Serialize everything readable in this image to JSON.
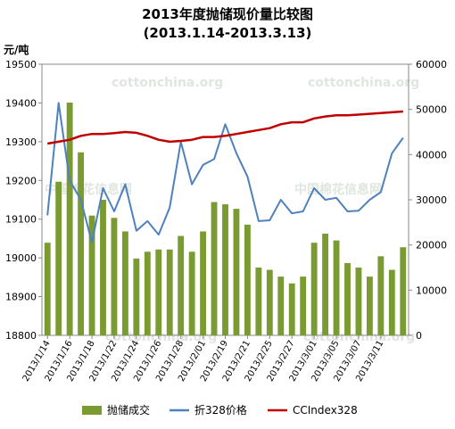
{
  "chart_data": {
    "type": "bar+line",
    "title": "2013年度抛储现价量比较图",
    "subtitle": "(2013.1.14-2013.3.13)",
    "ylabel_left": "元/吨",
    "ylim_left": [
      18800,
      19500
    ],
    "yticks_left": [
      "19500",
      "19400",
      "19300",
      "19200",
      "19100",
      "19000",
      "18900",
      "18800"
    ],
    "ylim_right": [
      0,
      60000
    ],
    "yticks_right": [
      "60000",
      "50000",
      "40000",
      "30000",
      "20000",
      "10000",
      "0"
    ],
    "x_tick_labels": [
      "2013/1/14",
      "2013/1/16",
      "2013/1/18",
      "2013/1/22",
      "2013/1/24",
      "2013/1/26",
      "2013/1/28",
      "2013/2/01",
      "2013/2/19",
      "2013/2/21",
      "2013/2/25",
      "2013/2/27",
      "2013/3/01",
      "2013/3/05",
      "2013/3/07",
      "2013/3/11"
    ],
    "series": [
      {
        "name": "抛储成交",
        "kind": "bar",
        "axis": "right",
        "color": "#7a9a32",
        "values": [
          20500,
          34000,
          51500,
          40500,
          26500,
          30000,
          26000,
          23000,
          17000,
          18500,
          19000,
          19000,
          22000,
          18500,
          23000,
          29500,
          29000,
          28000,
          24500,
          15000,
          14500,
          13000,
          11500,
          13000,
          20500,
          22500,
          21000,
          16000,
          15000,
          13000,
          17500,
          14500,
          19500
        ]
      },
      {
        "name": "折328价格",
        "kind": "line",
        "axis": "left",
        "color": "#4f81bd",
        "values": [
          19110,
          19400,
          19200,
          19150,
          19040,
          19180,
          19120,
          19190,
          19070,
          19095,
          19060,
          19130,
          19300,
          19190,
          19240,
          19255,
          19345,
          19270,
          19210,
          19095,
          19097,
          19150,
          19115,
          19120,
          19180,
          19150,
          19155,
          19120,
          19122,
          19150,
          19170,
          19270,
          19310
        ]
      },
      {
        "name": "CCIndex328",
        "kind": "line",
        "axis": "left",
        "color": "#c00000",
        "values": [
          19295,
          19300,
          19305,
          19315,
          19320,
          19320,
          19322,
          19325,
          19323,
          19315,
          19305,
          19300,
          19302,
          19305,
          19312,
          19312,
          19315,
          19320,
          19325,
          19330,
          19335,
          19345,
          19350,
          19350,
          19360,
          19365,
          19368,
          19368,
          19370,
          19372,
          19374,
          19376,
          19378
        ]
      }
    ],
    "grid": false,
    "legend_position": "bottom"
  },
  "watermarks": [
    "cottonchina.org",
    "cottonchina.org",
    "中国棉花信息网",
    "中国棉花信息网",
    "cottonchina.org",
    "cottonchina.org"
  ]
}
